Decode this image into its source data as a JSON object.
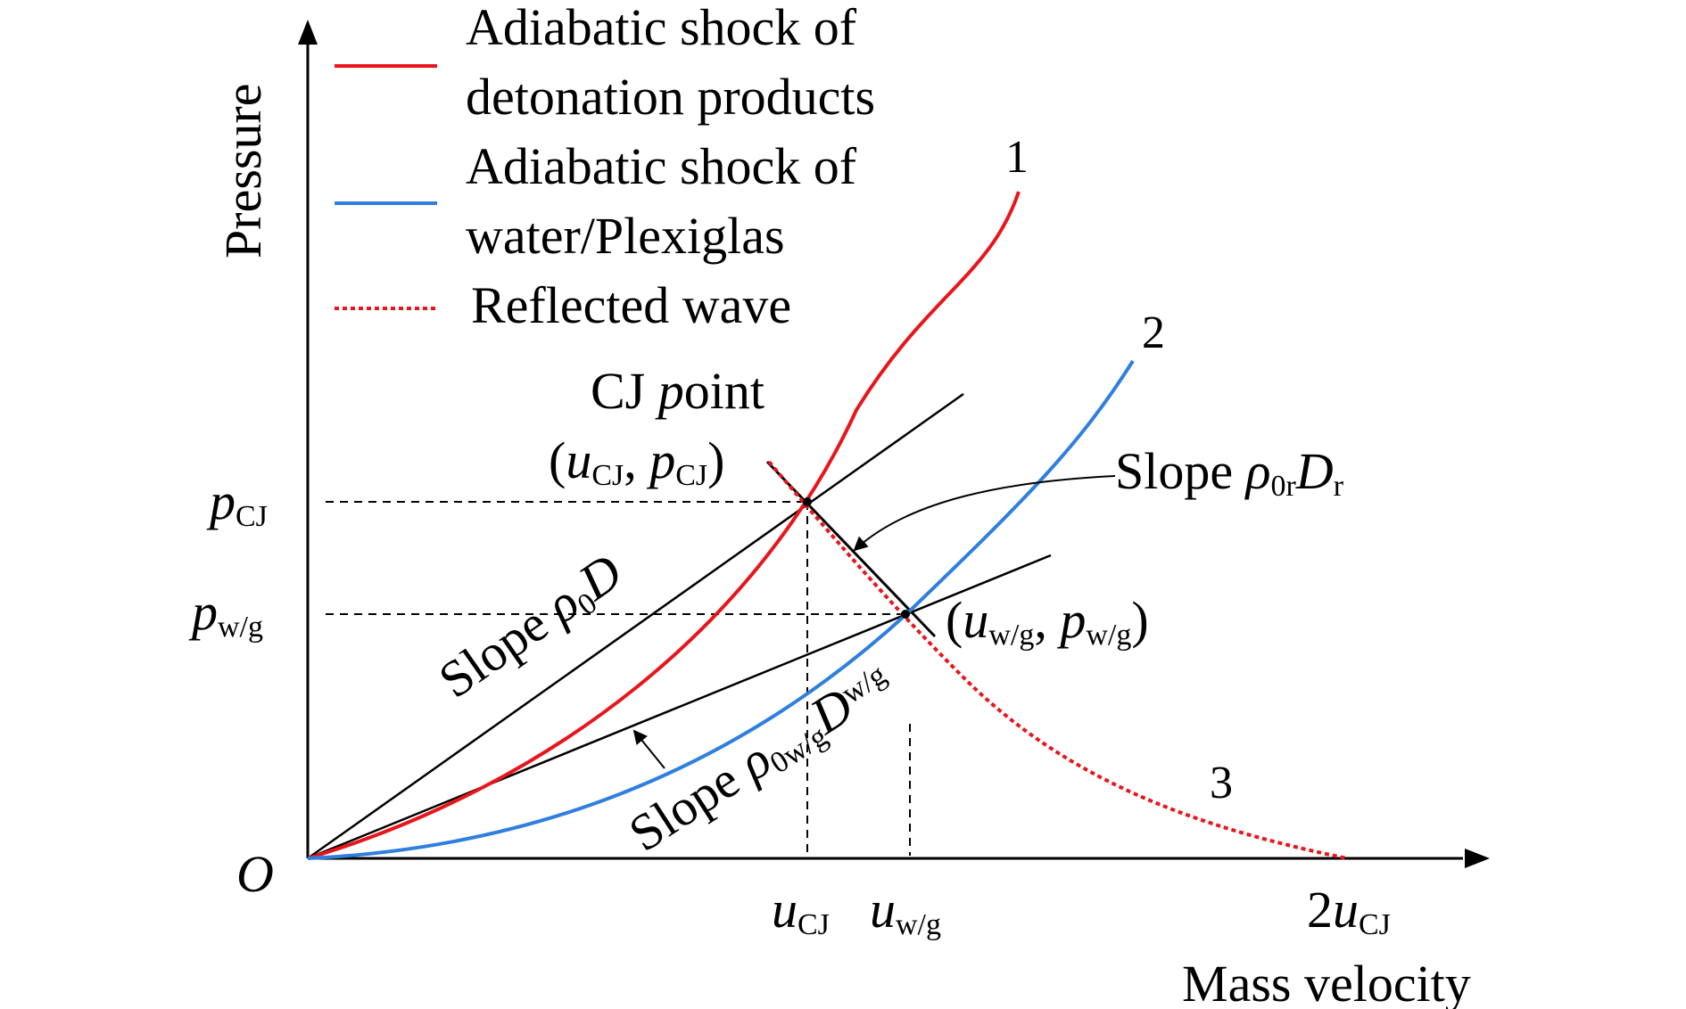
{
  "colors": {
    "detonation": "#e8151c",
    "water": "#2f7fe0",
    "reflected": "#e8151c",
    "ink": "#000000"
  },
  "axes": {
    "origin": "O",
    "y_label": "Pressure",
    "x_label": "Mass velocity",
    "x_ticks": [
      {
        "main": "u",
        "sub": "CJ",
        "prefix": ""
      },
      {
        "main": "u",
        "sub": "w/g",
        "prefix": ""
      },
      {
        "main": "u",
        "sub": "CJ",
        "prefix": "2"
      }
    ],
    "y_ticks": [
      {
        "main": "p",
        "sub": "CJ"
      },
      {
        "main": "p",
        "sub": "w/g"
      }
    ]
  },
  "legend": [
    {
      "line1": "Adiabatic shock of",
      "line2": "detonation products",
      "style": "solid",
      "color": "#e8151c"
    },
    {
      "line1": "Adiabatic shock of",
      "line2": "water/Plexiglas",
      "style": "solid",
      "color": "#2f7fe0"
    },
    {
      "line1": "Reflected wave",
      "line2": "",
      "style": "dotted",
      "color": "#e8151c"
    }
  ],
  "curve_numbers": {
    "c1": "1",
    "c2": "2",
    "c3": "3"
  },
  "annotations": {
    "cj_point": {
      "text": "CJ",
      "italic": "p",
      "rest": "oint"
    },
    "cj_coords": {
      "open": "(",
      "u": "u",
      "u_sub": "CJ",
      "sep": ", ",
      "p": "p",
      "p_sub": "CJ",
      "close": ")"
    },
    "wg_coords": {
      "open": "(",
      "u": "u",
      "u_sub": "w/g",
      "sep": ", ",
      "p": "p",
      "p_sub": "w/g",
      "close": ")"
    },
    "slope_rho0D": {
      "word": "Slope ",
      "rho": "ρ",
      "rho_sub": "0",
      "D": "D"
    },
    "slope_rho0wg": {
      "word": "Slope ",
      "rho": "ρ",
      "rho_sub": "0w/g",
      "D": "D",
      "D_sub": "w/g"
    },
    "slope_rho0r": {
      "word": "Slope ",
      "rho": "ρ",
      "rho_sub": "0r",
      "D": "D",
      "D_sub": "r"
    }
  }
}
